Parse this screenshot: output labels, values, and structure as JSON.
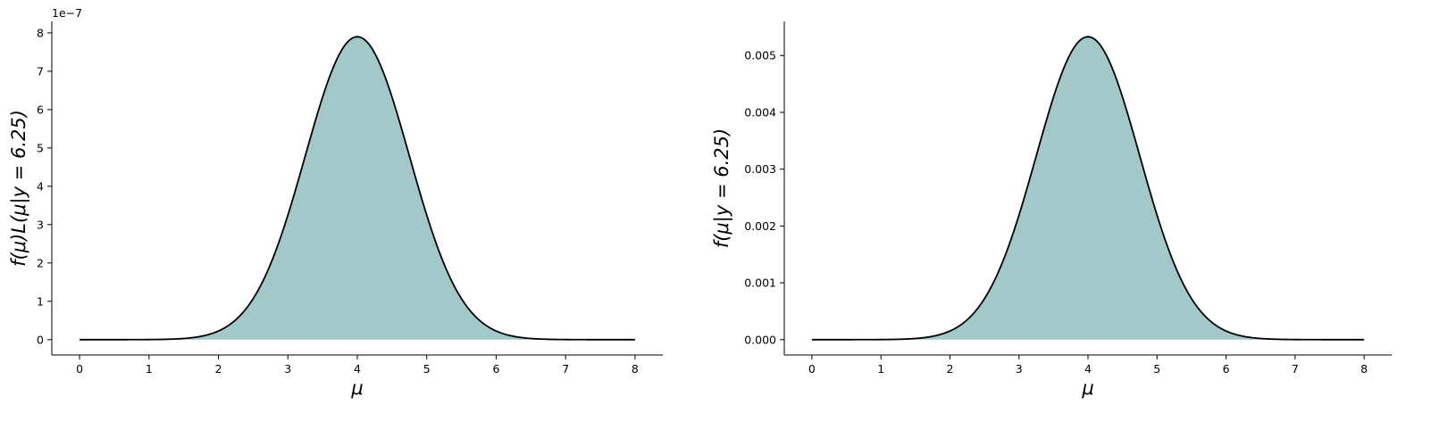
{
  "chart_data": [
    {
      "type": "area",
      "panel": "left",
      "xlabel": "μ",
      "ylabel": "f(μ)L(μ|y = 6.25)",
      "y_offset_label": "1e−7",
      "y_scale": 1e-07,
      "xlim": [
        -0.4,
        8.4
      ],
      "ylim": [
        -0.4,
        8.3
      ],
      "x_ticks": [
        0,
        1,
        2,
        3,
        4,
        5,
        6,
        7,
        8
      ],
      "y_ticks": [
        0,
        1,
        2,
        3,
        4,
        5,
        6,
        7,
        8
      ],
      "x_tick_labels": [
        "0",
        "1",
        "2",
        "3",
        "4",
        "5",
        "6",
        "7",
        "8"
      ],
      "y_tick_labels": [
        "0",
        "1",
        "2",
        "3",
        "4",
        "5",
        "6",
        "7",
        "8"
      ],
      "curve": {
        "kind": "normal",
        "mean": 4.0,
        "sd": 0.75,
        "peak": 7.9,
        "x_start": 0,
        "x_end": 8
      },
      "fill_color": "#a2c8ca",
      "line_color": "#000000",
      "grid": false
    },
    {
      "type": "area",
      "panel": "right",
      "xlabel": "μ",
      "ylabel": "f(μ|y = 6.25)",
      "xlim": [
        -0.4,
        8.4
      ],
      "ylim": [
        -0.00027,
        0.0056
      ],
      "x_ticks": [
        0,
        1,
        2,
        3,
        4,
        5,
        6,
        7,
        8
      ],
      "y_ticks": [
        0,
        0.001,
        0.002,
        0.003,
        0.004,
        0.005
      ],
      "x_tick_labels": [
        "0",
        "1",
        "2",
        "3",
        "4",
        "5",
        "6",
        "7",
        "8"
      ],
      "y_tick_labels": [
        "0.000",
        "0.001",
        "0.002",
        "0.003",
        "0.004",
        "0.005"
      ],
      "curve": {
        "kind": "normal",
        "mean": 4.0,
        "sd": 0.75,
        "peak": 0.00533,
        "x_start": 0,
        "x_end": 8
      },
      "fill_color": "#a2c8ca",
      "line_color": "#000000",
      "grid": false
    }
  ]
}
